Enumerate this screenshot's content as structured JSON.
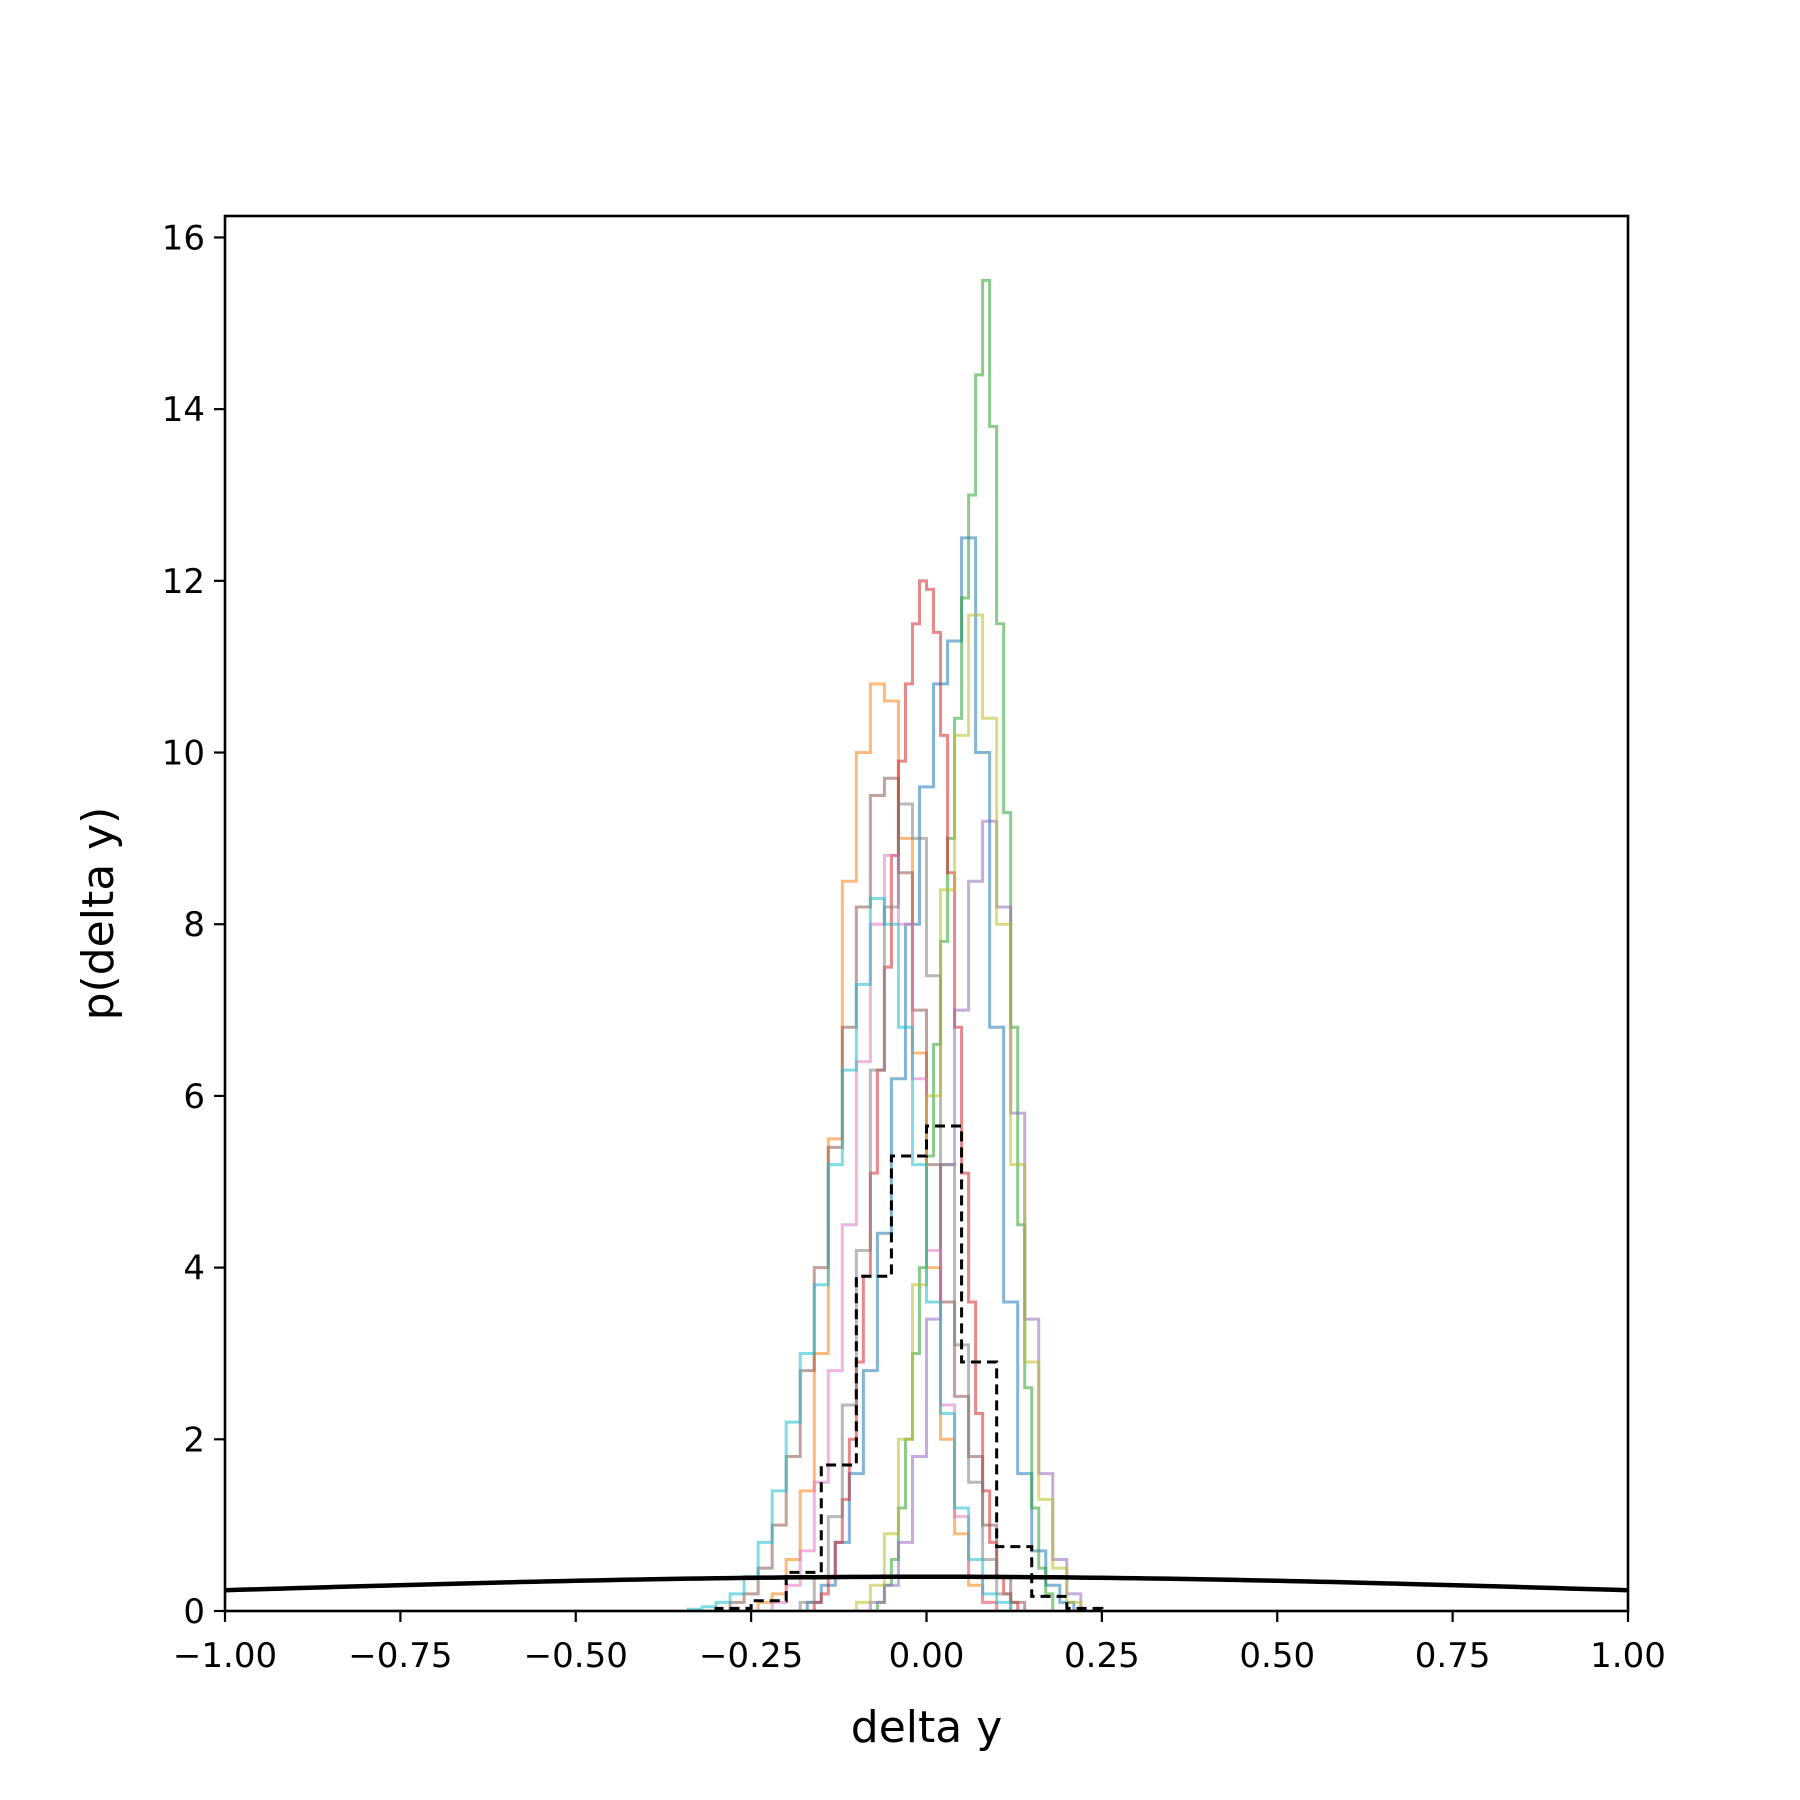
{
  "chart_data": {
    "type": "line",
    "title": "",
    "xlabel": "delta y",
    "ylabel": "p(delta y)",
    "xlim": [
      -1.0,
      1.0
    ],
    "ylim": [
      0,
      16.25
    ],
    "grid": false,
    "legend": "none",
    "xticks": [
      {
        "value": -1.0,
        "label": "−1.00"
      },
      {
        "value": -0.75,
        "label": "−0.75"
      },
      {
        "value": -0.5,
        "label": "−0.50"
      },
      {
        "value": -0.25,
        "label": "−0.25"
      },
      {
        "value": 0.0,
        "label": "0.00"
      },
      {
        "value": 0.25,
        "label": "0.25"
      },
      {
        "value": 0.5,
        "label": "0.50"
      },
      {
        "value": 0.75,
        "label": "0.75"
      },
      {
        "value": 1.0,
        "label": "1.00"
      }
    ],
    "yticks": [
      {
        "value": 0,
        "label": "0"
      },
      {
        "value": 2,
        "label": "2"
      },
      {
        "value": 4,
        "label": "4"
      },
      {
        "value": 6,
        "label": "6"
      },
      {
        "value": 8,
        "label": "8"
      },
      {
        "value": 10,
        "label": "10"
      },
      {
        "value": 12,
        "label": "12"
      },
      {
        "value": 14,
        "label": "14"
      },
      {
        "value": 16,
        "label": "16"
      }
    ],
    "histograms": [
      {
        "color": "#1f77b4",
        "bin_width": 0.02,
        "x_start": -0.17,
        "values": [
          0.1,
          0.3,
          0.8,
          1.6,
          2.8,
          4.4,
          6.2,
          8.0,
          9.6,
          10.8,
          11.3,
          12.5,
          10.0,
          6.8,
          3.6,
          1.6,
          0.7,
          0.3,
          0.1
        ]
      },
      {
        "color": "#ff7f0e",
        "bin_width": 0.02,
        "x_start": -0.24,
        "values": [
          0.1,
          0.2,
          0.6,
          1.4,
          3.0,
          5.5,
          8.5,
          10.0,
          10.8,
          10.6,
          9.0,
          6.5,
          4.0,
          2.0,
          0.9,
          0.3,
          0.1
        ]
      },
      {
        "color": "#2ca02c",
        "bin_width": 0.01,
        "x_start": -0.07,
        "values": [
          0.1,
          0.3,
          0.6,
          1.2,
          2.0,
          3.0,
          4.0,
          5.3,
          6.6,
          7.8,
          9.0,
          10.4,
          11.8,
          13.0,
          14.4,
          15.5,
          13.8,
          11.5,
          9.3,
          6.8,
          4.5,
          2.6,
          1.2,
          0.5,
          0.2
        ]
      },
      {
        "color": "#d62728",
        "bin_width": 0.01,
        "x_start": -0.16,
        "values": [
          0.1,
          0.2,
          0.4,
          0.8,
          1.3,
          2.0,
          2.9,
          3.9,
          5.1,
          6.3,
          7.5,
          8.8,
          9.9,
          10.8,
          11.5,
          12.0,
          11.9,
          11.4,
          10.2,
          8.6,
          6.8,
          5.1,
          3.6,
          2.3,
          1.4,
          0.8,
          0.4,
          0.2,
          0.1
        ]
      },
      {
        "color": "#9467bd",
        "bin_width": 0.02,
        "x_start": -0.08,
        "values": [
          0.1,
          0.3,
          0.8,
          1.8,
          3.4,
          5.2,
          7.0,
          8.5,
          9.2,
          8.2,
          5.8,
          3.4,
          1.6,
          0.6,
          0.2
        ]
      },
      {
        "color": "#8c564b",
        "bin_width": 0.02,
        "x_start": -0.28,
        "values": [
          0.1,
          0.2,
          0.5,
          1.0,
          1.8,
          2.8,
          4.0,
          5.4,
          6.8,
          8.2,
          9.5,
          9.7,
          8.6,
          7.0,
          5.2,
          3.6,
          2.5,
          1.8,
          1.0,
          0.4,
          0.1
        ]
      },
      {
        "color": "#e377c2",
        "bin_width": 0.02,
        "x_start": -0.22,
        "values": [
          0.1,
          0.3,
          0.7,
          1.5,
          2.8,
          4.5,
          6.4,
          8.0,
          8.8,
          8.0,
          6.2,
          4.2,
          2.4,
          1.1,
          0.4,
          0.1
        ]
      },
      {
        "color": "#7f7f7f",
        "bin_width": 0.02,
        "x_start": -0.18,
        "values": [
          0.1,
          0.4,
          1.1,
          2.4,
          4.2,
          6.3,
          8.2,
          9.4,
          9.0,
          7.4,
          5.2,
          3.1,
          1.5,
          0.6,
          0.2
        ]
      },
      {
        "color": "#bcbd22",
        "bin_width": 0.02,
        "x_start": -0.1,
        "values": [
          0.1,
          0.3,
          0.9,
          2.0,
          3.8,
          6.0,
          8.4,
          10.2,
          11.6,
          10.4,
          8.0,
          5.2,
          2.9,
          1.3,
          0.5,
          0.1
        ]
      },
      {
        "color": "#17becf",
        "bin_width": 0.02,
        "x_start": -0.34,
        "values": [
          0.02,
          0.05,
          0.1,
          0.2,
          0.4,
          0.8,
          1.4,
          2.2,
          3.0,
          3.8,
          5.2,
          6.3,
          7.3,
          8.3,
          8.0,
          6.8,
          5.2,
          3.6,
          2.3,
          1.2,
          0.6,
          0.2,
          0.1
        ]
      }
    ],
    "aggregate_histogram": {
      "color": "#000000",
      "style": "dashed",
      "bin_width": 0.05,
      "x_start": -0.3,
      "values": [
        0.03,
        0.12,
        0.45,
        1.7,
        3.9,
        5.3,
        5.65,
        2.9,
        0.75,
        0.17,
        0.03
      ]
    },
    "reference_curve": {
      "color": "#000000",
      "distribution": "normal",
      "mean": 0,
      "std": 1,
      "sample_step": 0.02
    }
  }
}
